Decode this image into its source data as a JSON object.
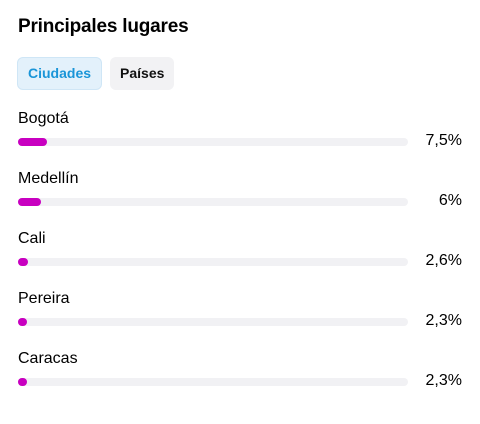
{
  "header": {
    "title": "Principales lugares"
  },
  "tabs": [
    {
      "label": "Ciudades",
      "active": true
    },
    {
      "label": "Países",
      "active": false
    }
  ],
  "colors": {
    "bar_fill": "#c800c0",
    "bar_track": "#f1f1f4",
    "active_tab_text": "#1a95d8",
    "active_tab_bg": "#e3f1fb"
  },
  "places": [
    {
      "name": "Bogotá",
      "percent_label": "7,5%",
      "value": 7.5
    },
    {
      "name": "Medellín",
      "percent_label": "6%",
      "value": 6.0
    },
    {
      "name": "Cali",
      "percent_label": "2,6%",
      "value": 2.6
    },
    {
      "name": "Pereira",
      "percent_label": "2,3%",
      "value": 2.3
    },
    {
      "name": "Caracas",
      "percent_label": "2,3%",
      "value": 2.3
    }
  ]
}
